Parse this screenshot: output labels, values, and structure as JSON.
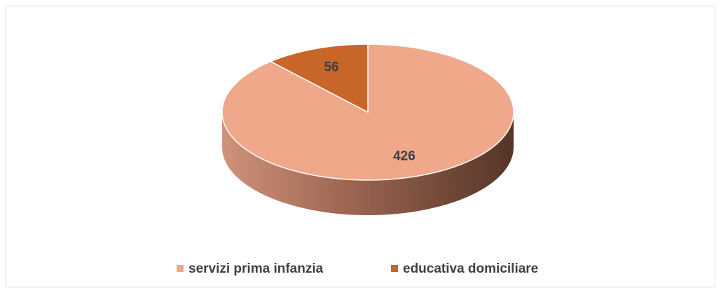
{
  "chart_data": {
    "type": "pie",
    "categories": [
      "servizi prima infanzia",
      "educativa domiciliare"
    ],
    "values": [
      426,
      56
    ],
    "colors": [
      "#f0a88a",
      "#c8662a"
    ],
    "legend": "bottom"
  }
}
